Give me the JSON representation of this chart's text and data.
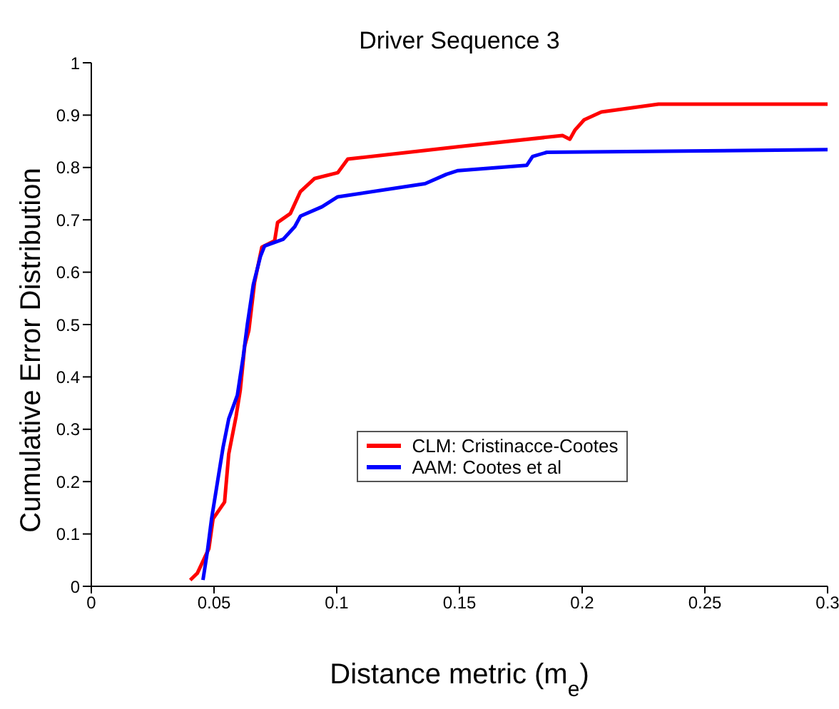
{
  "chart_data": {
    "type": "line",
    "title": "Driver Sequence 3",
    "xlabel": "Distance metric (m$_{e}$)",
    "ylabel": "Cumulative Error Distribution",
    "xlim": [
      0,
      0.3
    ],
    "xticks": [
      0,
      0.05,
      0.1,
      0.15,
      0.2,
      0.25,
      0.3
    ],
    "ylim": [
      0,
      1
    ],
    "yticks": [
      0,
      0.1,
      0.2,
      0.3,
      0.4,
      0.5,
      0.6,
      0.7,
      0.8,
      0.9,
      1
    ],
    "grid": false,
    "legend": "center",
    "marker": "none",
    "line_style": "solid",
    "series": [
      {
        "name": "CLM: Cristinacce-Cootes",
        "color": "#ff0000",
        "x": [
          0.0403,
          0.0432,
          0.0479,
          0.0496,
          0.0543,
          0.056,
          0.059,
          0.0607,
          0.0625,
          0.0642,
          0.0665,
          0.0695,
          0.0747,
          0.0759,
          0.0811,
          0.0852,
          0.091,
          0.1004,
          0.1045,
          0.15,
          0.192,
          0.195,
          0.197,
          0.2008,
          0.2078,
          0.2311,
          0.3
        ],
        "values": [
          0.012,
          0.025,
          0.072,
          0.129,
          0.161,
          0.253,
          0.325,
          0.375,
          0.459,
          0.489,
          0.58,
          0.648,
          0.66,
          0.695,
          0.712,
          0.754,
          0.779,
          0.79,
          0.816,
          0.84,
          0.861,
          0.854,
          0.871,
          0.891,
          0.906,
          0.921,
          0.921
        ]
      },
      {
        "name": "AAM: Cootes et al",
        "color": "#0000ff",
        "x": [
          0.0455,
          0.0473,
          0.049,
          0.0514,
          0.0537,
          0.056,
          0.0595,
          0.0619,
          0.0636,
          0.066,
          0.0689,
          0.0706,
          0.0782,
          0.0829,
          0.0852,
          0.094,
          0.1004,
          0.136,
          0.1447,
          0.1494,
          0.1774,
          0.1798,
          0.1856,
          0.3
        ],
        "values": [
          0.012,
          0.067,
          0.129,
          0.199,
          0.266,
          0.32,
          0.365,
          0.439,
          0.501,
          0.576,
          0.63,
          0.65,
          0.663,
          0.687,
          0.707,
          0.725,
          0.744,
          0.769,
          0.787,
          0.794,
          0.804,
          0.821,
          0.829,
          0.834
        ]
      }
    ]
  }
}
